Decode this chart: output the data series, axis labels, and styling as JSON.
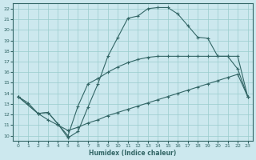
{
  "xlabel": "Humidex (Indice chaleur)",
  "bg_color": "#cce8ee",
  "line_color": "#336666",
  "grid_color": "#99cccc",
  "xlim": [
    -0.5,
    23.5
  ],
  "ylim": [
    9.5,
    22.5
  ],
  "xticks": [
    0,
    1,
    2,
    3,
    4,
    5,
    6,
    7,
    8,
    9,
    10,
    11,
    12,
    13,
    14,
    15,
    16,
    17,
    18,
    19,
    20,
    21,
    22,
    23
  ],
  "yticks": [
    10,
    11,
    12,
    13,
    14,
    15,
    16,
    17,
    18,
    19,
    20,
    21,
    22
  ],
  "line1_x": [
    0,
    1,
    2,
    3,
    4,
    5,
    6,
    7,
    8,
    9,
    10,
    11,
    12,
    13,
    14,
    15,
    16,
    17,
    18,
    19,
    20,
    21,
    22,
    23
  ],
  "line1_y": [
    13.7,
    13.1,
    12.1,
    12.2,
    11.1,
    9.8,
    10.4,
    12.7,
    14.9,
    17.5,
    19.3,
    21.1,
    21.3,
    22.0,
    22.1,
    22.1,
    21.5,
    20.4,
    19.3,
    19.2,
    17.5,
    17.5,
    16.3,
    13.7
  ],
  "line2_x": [
    0,
    2,
    3,
    4,
    5,
    6,
    7,
    8,
    9,
    10,
    11,
    12,
    13,
    14,
    15,
    16,
    17,
    18,
    19,
    20,
    21,
    22,
    23
  ],
  "line2_y": [
    13.7,
    12.1,
    12.2,
    11.1,
    10.0,
    12.8,
    14.9,
    15.4,
    16.0,
    16.5,
    16.9,
    17.2,
    17.4,
    17.5,
    17.5,
    17.5,
    17.5,
    17.5,
    17.5,
    17.5,
    17.5,
    17.5,
    13.7
  ],
  "line3_x": [
    0,
    2,
    3,
    4,
    5,
    6,
    7,
    8,
    9,
    10,
    11,
    12,
    13,
    14,
    15,
    16,
    17,
    18,
    19,
    20,
    21,
    22,
    23
  ],
  "line3_y": [
    13.7,
    12.1,
    11.5,
    11.0,
    10.5,
    10.8,
    11.2,
    11.5,
    11.9,
    12.2,
    12.5,
    12.8,
    13.1,
    13.4,
    13.7,
    14.0,
    14.3,
    14.6,
    14.9,
    15.2,
    15.5,
    15.8,
    13.7
  ],
  "markersize": 2.5
}
